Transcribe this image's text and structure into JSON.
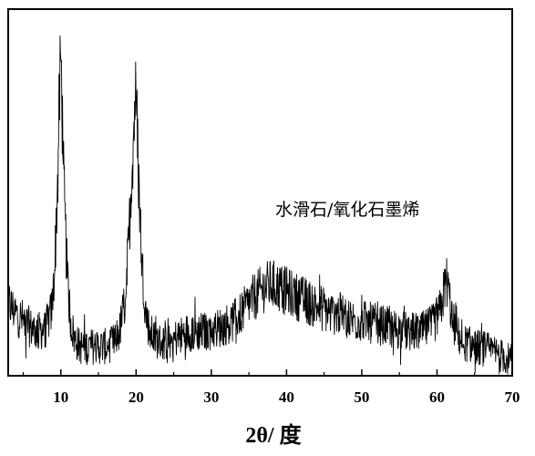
{
  "chart_data": {
    "type": "line",
    "title": "",
    "xlabel": "2θ/ 度",
    "ylabel": "",
    "xlim": [
      3,
      70
    ],
    "ylim": [
      0,
      100
    ],
    "grid": false,
    "legend": "none",
    "x_ticks": [
      10,
      20,
      30,
      40,
      50,
      60,
      70
    ],
    "annotations": [
      {
        "text": "水滑石/氧化石墨烯",
        "x": 38,
        "y": 59
      }
    ],
    "series": [
      {
        "color": "#000000",
        "noisy": true,
        "x": [
          3,
          4,
          5,
          6,
          7,
          8,
          8.8,
          9.2,
          9.6,
          9.8,
          10.0,
          10.2,
          10.5,
          10.9,
          11.3,
          11.8,
          12.5,
          13,
          14,
          15,
          16,
          17,
          17.8,
          18.5,
          19,
          19.4,
          19.7,
          19.9,
          20.1,
          20.4,
          20.8,
          21.3,
          21.8,
          22.5,
          23.5,
          25,
          27,
          29,
          31,
          33,
          34,
          35,
          36,
          37,
          38,
          39,
          40,
          41,
          42,
          43,
          44,
          45,
          46,
          47,
          48,
          49,
          50,
          52,
          54,
          56,
          58,
          59.5,
          60.5,
          61.0,
          61.3,
          61.6,
          62.0,
          62.5,
          63.5,
          65,
          67,
          69,
          70
        ],
        "y": [
          20,
          17,
          15,
          13,
          12,
          13,
          18,
          30,
          55,
          75,
          88,
          70,
          45,
          25,
          15,
          10,
          8,
          8,
          8,
          8,
          8,
          9,
          12,
          20,
          35,
          55,
          68,
          77,
          70,
          50,
          30,
          17,
          12,
          10,
          9,
          10,
          12,
          12,
          13,
          15,
          17,
          20,
          22,
          24,
          25,
          24,
          23,
          22,
          21,
          20,
          19,
          18,
          17,
          17,
          16,
          15,
          15,
          14,
          13,
          12,
          12,
          14,
          18,
          24,
          26,
          22,
          16,
          12,
          9,
          8,
          7,
          5,
          4
        ]
      }
    ]
  }
}
